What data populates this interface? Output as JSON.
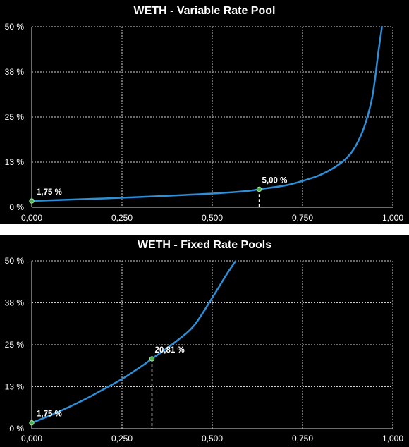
{
  "chart_data": [
    {
      "type": "line",
      "title": "WETH - Variable Rate Pool",
      "xlabel": "",
      "ylabel": "",
      "xlim": [
        0,
        1
      ],
      "ylim": [
        0,
        50
      ],
      "x_ticks": [
        "0,000",
        "0,250",
        "0,500",
        "0,750",
        "1,000"
      ],
      "y_ticks": [
        "0 %",
        "13 %",
        "25 %",
        "38 %",
        "50 %"
      ],
      "grid": true,
      "line_color": "#2e8fd8",
      "series": [
        {
          "x": [
            0.0,
            0.1,
            0.2,
            0.3,
            0.4,
            0.5,
            0.6,
            0.63,
            0.7,
            0.75,
            0.8,
            0.85,
            0.88,
            0.9,
            0.92,
            0.94,
            0.95,
            0.96,
            0.97
          ],
          "y": [
            1.75,
            2.1,
            2.45,
            2.85,
            3.3,
            3.8,
            4.55,
            5.0,
            6.0,
            7.3,
            9.0,
            11.8,
            14.5,
            17.5,
            22.0,
            29.0,
            35.0,
            43.0,
            50.0
          ]
        }
      ],
      "annotations": [
        {
          "x": 0.0,
          "y": 1.75,
          "label": "1,75 %",
          "drop_line": false
        },
        {
          "x": 0.63,
          "y": 5.0,
          "label": "5,00 %",
          "drop_line": true
        }
      ]
    },
    {
      "type": "line",
      "title": "WETH - Fixed Rate Pools",
      "xlabel": "",
      "ylabel": "",
      "xlim": [
        0,
        1
      ],
      "ylim": [
        0,
        50
      ],
      "x_ticks": [
        "0,000",
        "0,250",
        "0,500",
        "0,750",
        "1,000"
      ],
      "y_ticks": [
        "0 %",
        "13 %",
        "25 %",
        "38 %",
        "50 %"
      ],
      "grid": true,
      "line_color": "#2e8fd8",
      "series": [
        {
          "x": [
            0.0,
            0.05,
            0.1,
            0.15,
            0.2,
            0.25,
            0.3,
            0.333,
            0.4,
            0.45,
            0.5,
            0.54,
            0.565
          ],
          "y": [
            1.75,
            3.9,
            6.3,
            8.9,
            11.8,
            14.8,
            18.3,
            20.81,
            26.0,
            30.8,
            39.0,
            46.0,
            50.0
          ]
        }
      ],
      "annotations": [
        {
          "x": 0.0,
          "y": 1.75,
          "label": "1,75 %",
          "drop_line": false
        },
        {
          "x": 0.333,
          "y": 20.81,
          "label": "20,81 %",
          "drop_line": true
        }
      ]
    }
  ]
}
